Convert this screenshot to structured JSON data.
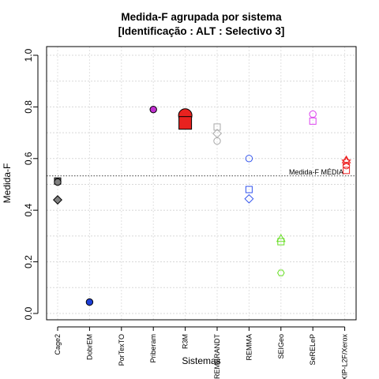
{
  "chart_data": {
    "type": "scatter",
    "title": "Medida-F agrupada por sistema",
    "subtitle": "[Identificação : ALT : Selectivo 3]",
    "xlabel": "Sistemas",
    "ylabel": "Medida-F",
    "ylim": [
      0,
      1
    ],
    "yticks": [
      "0.0",
      "0.2",
      "0.4",
      "0.6",
      "0.8",
      "1.0"
    ],
    "grid": true,
    "categories": [
      "Cage2",
      "DobrEM",
      "PorTexTO",
      "Priberam",
      "R3M",
      "REMBRANDT",
      "REMMA",
      "SEIGeo",
      "SeRELeP",
      "XIP-L2F/Xerox"
    ],
    "reference_line": {
      "label": "Medida-F MÉDIA",
      "value": 0.533
    },
    "points": [
      {
        "category": "Cage2",
        "value": 0.513,
        "shape": "square",
        "fill": "#7f7f7f",
        "stroke": "#000000",
        "size": "small"
      },
      {
        "category": "Cage2",
        "value": 0.509,
        "shape": "circle",
        "fill": "#7f7f7f",
        "stroke": "#000000",
        "size": "small"
      },
      {
        "category": "Cage2",
        "value": 0.44,
        "shape": "diamond",
        "fill": "#7f7f7f",
        "stroke": "#000000",
        "size": "small"
      },
      {
        "category": "DobrEM",
        "value": 0.044,
        "shape": "circle",
        "fill": "#1d3fd6",
        "stroke": "#000000",
        "size": "small"
      },
      {
        "category": "Priberam",
        "value": 0.79,
        "shape": "circle",
        "fill": "#c030d0",
        "stroke": "#000000",
        "size": "small"
      },
      {
        "category": "R3M",
        "value": 0.767,
        "shape": "circle",
        "fill": "#e8221f",
        "stroke": "#000000",
        "size": "large"
      },
      {
        "category": "R3M",
        "value": 0.738,
        "shape": "square",
        "fill": "#e8221f",
        "stroke": "#000000",
        "size": "large"
      },
      {
        "category": "REMBRANDT",
        "value": 0.722,
        "shape": "square",
        "fill": "none",
        "stroke": "#aaaaaa",
        "size": "small"
      },
      {
        "category": "REMBRANDT",
        "value": 0.697,
        "shape": "diamond",
        "fill": "none",
        "stroke": "#aaaaaa",
        "size": "small"
      },
      {
        "category": "REMBRANDT",
        "value": 0.668,
        "shape": "circle",
        "fill": "none",
        "stroke": "#aaaaaa",
        "size": "small"
      },
      {
        "category": "REMMA",
        "value": 0.6,
        "shape": "circle",
        "fill": "none",
        "stroke": "#3355ee",
        "size": "small"
      },
      {
        "category": "REMMA",
        "value": 0.48,
        "shape": "square",
        "fill": "none",
        "stroke": "#3355ee",
        "size": "small"
      },
      {
        "category": "REMMA",
        "value": 0.444,
        "shape": "diamond",
        "fill": "none",
        "stroke": "#3355ee",
        "size": "small"
      },
      {
        "category": "SEIGeo",
        "value": 0.29,
        "shape": "triangle",
        "fill": "none",
        "stroke": "#66dd22",
        "size": "small"
      },
      {
        "category": "SEIGeo",
        "value": 0.278,
        "shape": "square",
        "fill": "none",
        "stroke": "#66dd22",
        "size": "small"
      },
      {
        "category": "SEIGeo",
        "value": 0.157,
        "shape": "hexagon",
        "fill": "none",
        "stroke": "#66dd22",
        "size": "small"
      },
      {
        "category": "SeRELeP",
        "value": 0.772,
        "shape": "circle",
        "fill": "none",
        "stroke": "#dd44ee",
        "size": "small"
      },
      {
        "category": "SeRELeP",
        "value": 0.745,
        "shape": "square",
        "fill": "none",
        "stroke": "#dd44ee",
        "size": "small"
      },
      {
        "category": "XIP-L2F/Xerox",
        "value": 0.594,
        "shape": "triangle",
        "fill": "none",
        "stroke": "#ee2222",
        "size": "small"
      },
      {
        "category": "XIP-L2F/Xerox",
        "value": 0.589,
        "shape": "star",
        "fill": "none",
        "stroke": "#ee2222",
        "size": "small"
      },
      {
        "category": "XIP-L2F/Xerox",
        "value": 0.573,
        "shape": "circle",
        "fill": "none",
        "stroke": "#ee2222",
        "size": "small"
      },
      {
        "category": "XIP-L2F/Xerox",
        "value": 0.554,
        "shape": "square",
        "fill": "none",
        "stroke": "#ee2222",
        "size": "small"
      }
    ]
  }
}
